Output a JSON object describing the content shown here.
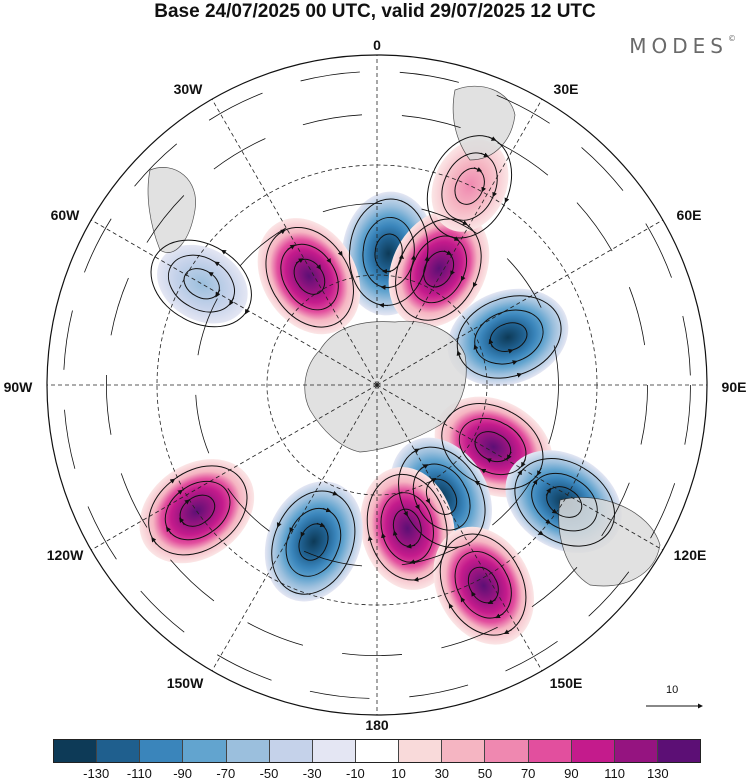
{
  "title": "Base 24/07/2025 00 UTC, valid 29/07/2025 12 UTC",
  "brand": "MODES",
  "brand_mark": "©",
  "longitude_labels": [
    "0",
    "30E",
    "60E",
    "90E",
    "120E",
    "150E",
    "180",
    "150W",
    "120W",
    "90W",
    "60W",
    "30W"
  ],
  "reference_vector": "10",
  "colorbar": {
    "colors": [
      "#0d3a57",
      "#1f5f8e",
      "#3a85bb",
      "#62a4cf",
      "#9bbfdd",
      "#c5d2ea",
      "#e4e6f3",
      "#ffffff",
      "#f9dada",
      "#f5b5c2",
      "#ef88b0",
      "#e24f9e",
      "#c41b8c",
      "#951480",
      "#5c0f75"
    ],
    "ticks": [
      "-130",
      "-110",
      "-90",
      "-70",
      "-50",
      "-30",
      "-10",
      "10",
      "30",
      "50",
      "70",
      "90",
      "110",
      "130"
    ]
  },
  "anomaly_centers": [
    {
      "lon": 5,
      "lat": -54,
      "value": -130
    },
    {
      "lon": 28,
      "lat": -54,
      "value": 130
    },
    {
      "lon": 70,
      "lat": -52,
      "value": -120
    },
    {
      "lon": 118,
      "lat": -54,
      "value": 120
    },
    {
      "lon": 150,
      "lat": -55,
      "value": -120
    },
    {
      "lon": 168,
      "lat": -50,
      "value": 110
    },
    {
      "lon": -158,
      "lat": -44,
      "value": -80
    },
    {
      "lon": -125,
      "lat": -30,
      "value": 90
    },
    {
      "lon": -32,
      "lat": -55,
      "value": 80
    },
    {
      "lon": 122,
      "lat": -30,
      "value": -100
    },
    {
      "lon": 152,
      "lat": -28,
      "value": 90
    },
    {
      "lon": 25,
      "lat": -30,
      "value": 20
    },
    {
      "lon": -60,
      "lat": -35,
      "value": -40
    }
  ]
}
